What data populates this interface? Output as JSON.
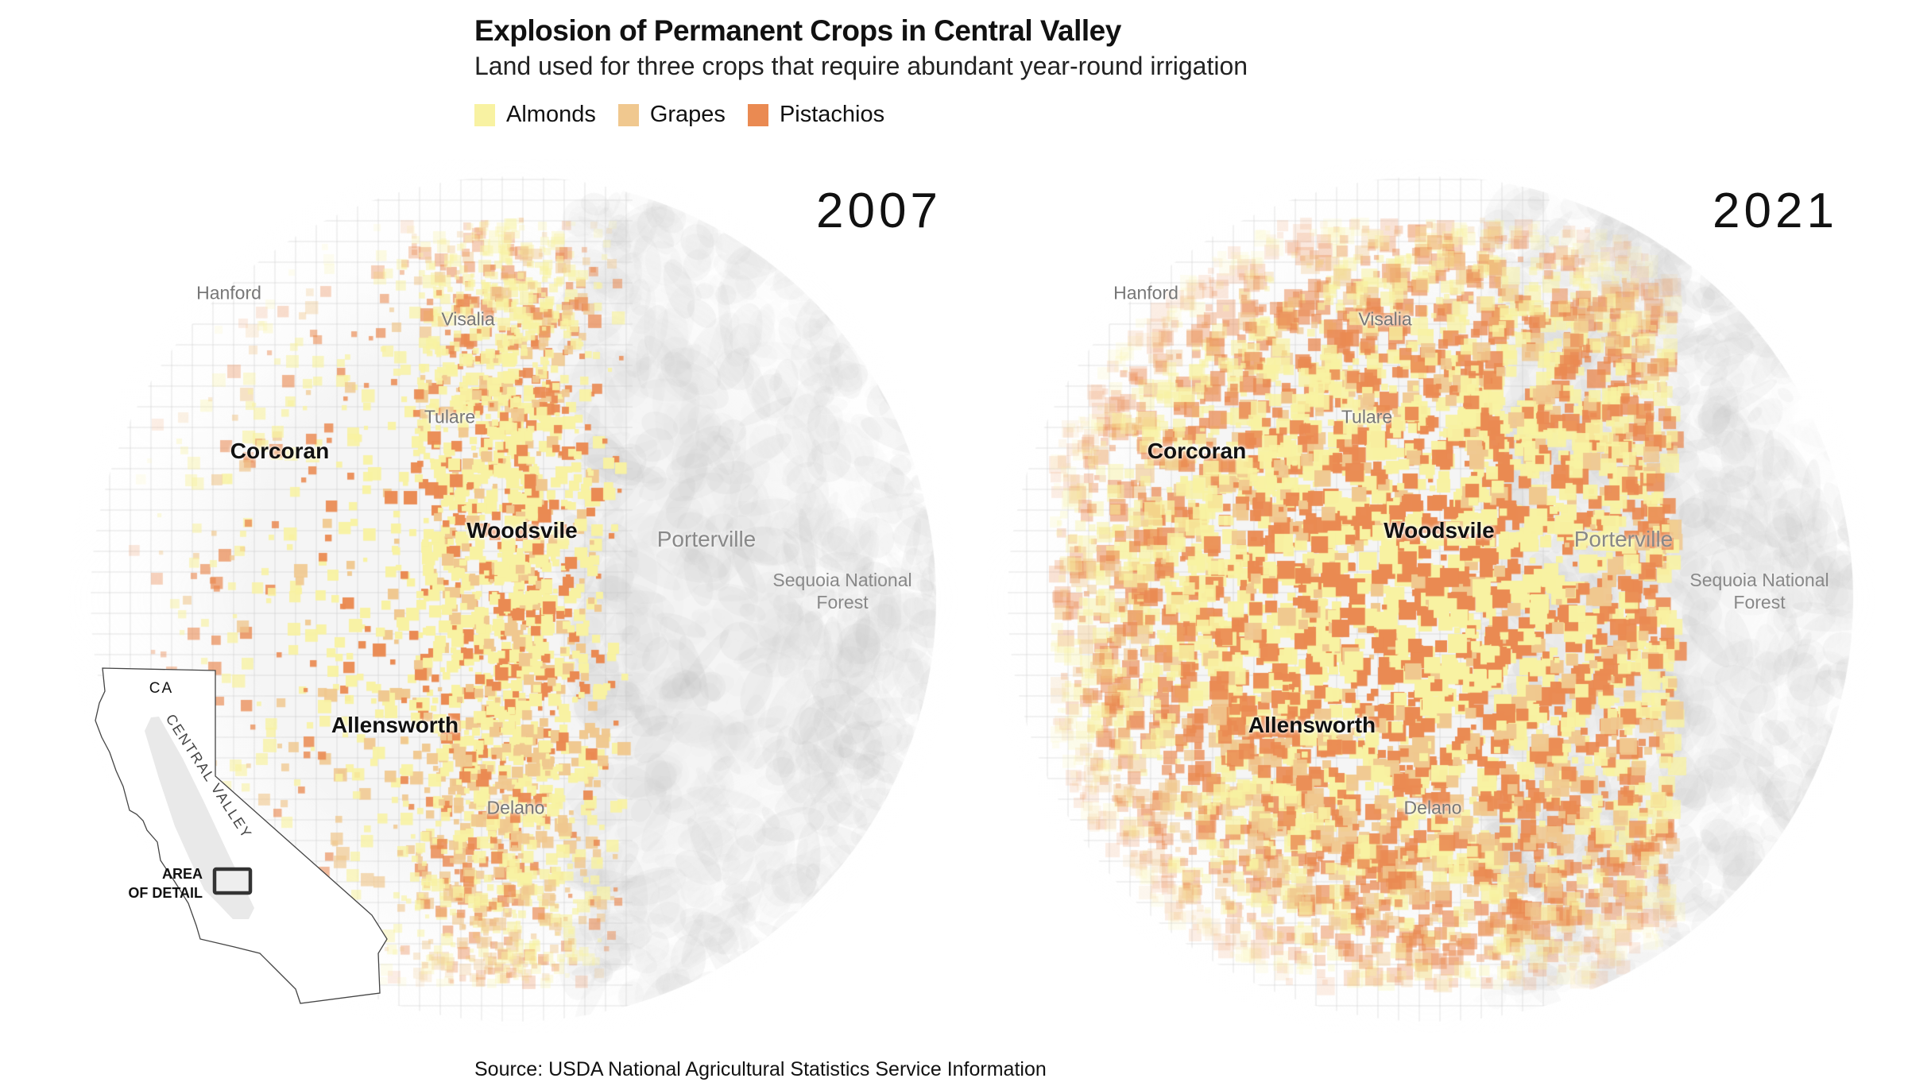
{
  "header": {
    "title": "Explosion of Permanent Crops in Central Valley",
    "subtitle": "Land used for three crops that require abundant year-round irrigation"
  },
  "legend": [
    {
      "label": "Almonds",
      "color": "#f8f2a2"
    },
    {
      "label": "Grapes",
      "color": "#f0c88f"
    },
    {
      "label": "Pistachios",
      "color": "#ea8a52"
    }
  ],
  "maps": [
    {
      "year": "2007",
      "labels": {
        "hanford": "Hanford",
        "visalia": "Visalia",
        "tulare": "Tulare",
        "corcoran": "Corcoran",
        "woodsvile": "Woodsvile",
        "porterville": "Porterville",
        "sequoia_1": "Sequoia National",
        "sequoia_2": "Forest",
        "allensworth": "Allensworth",
        "delano": "Delano"
      }
    },
    {
      "year": "2021",
      "labels": {
        "hanford": "Hanford",
        "visalia": "Visalia",
        "tulare": "Tulare",
        "corcoran": "Corcoran",
        "woodsvile": "Woodsvile",
        "porterville": "Porterville",
        "sequoia_1": "Sequoia National",
        "sequoia_2": "Forest",
        "allensworth": "Allensworth",
        "delano": "Delano"
      }
    }
  ],
  "inset": {
    "state": "CA",
    "valley": "CENTRAL VALLEY",
    "area_1": "AREA",
    "area_2": "OF DETAIL"
  },
  "source": "Source: USDA National Agricultural Statistics Service Information"
}
